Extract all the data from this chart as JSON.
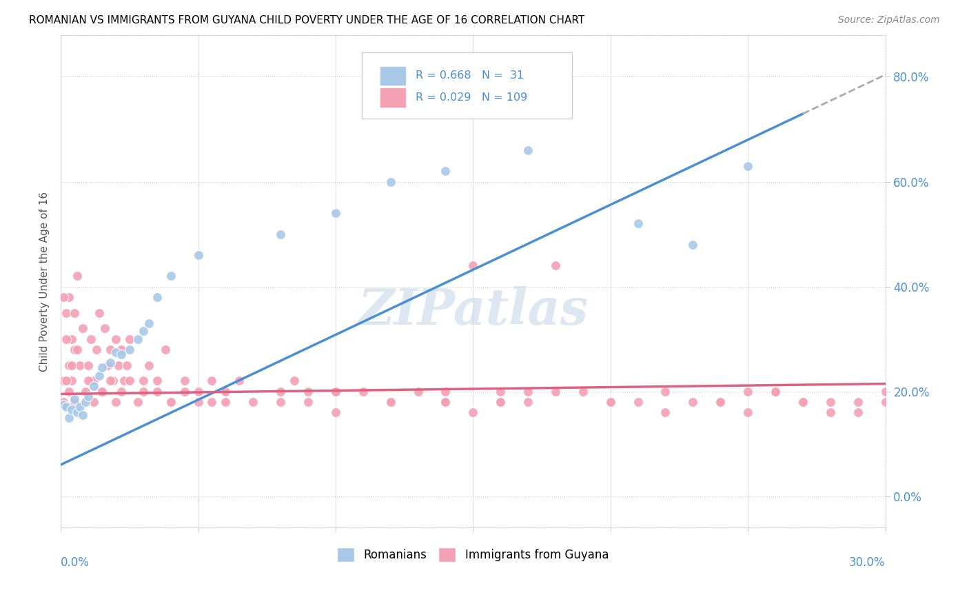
{
  "title": "ROMANIAN VS IMMIGRANTS FROM GUYANA CHILD POVERTY UNDER THE AGE OF 16 CORRELATION CHART",
  "source": "Source: ZipAtlas.com",
  "ylabel": "Child Poverty Under the Age of 16",
  "ytick_labels": [
    "0.0%",
    "20.0%",
    "40.0%",
    "60.0%",
    "80.0%"
  ],
  "ytick_vals": [
    0.0,
    0.2,
    0.4,
    0.6,
    0.8
  ],
  "xlim": [
    0.0,
    0.3
  ],
  "ylim": [
    -0.06,
    0.88
  ],
  "color_romanian": "#a8c8e8",
  "color_guyana": "#f4a0b5",
  "color_line_romanian": "#4a8fd4",
  "color_line_guyana": "#e06080",
  "watermark": "ZIPatlas",
  "romanian_x": [
    0.001,
    0.002,
    0.003,
    0.004,
    0.005,
    0.006,
    0.007,
    0.008,
    0.009,
    0.01,
    0.012,
    0.014,
    0.015,
    0.018,
    0.02,
    0.022,
    0.025,
    0.028,
    0.03,
    0.032,
    0.035,
    0.04,
    0.05,
    0.08,
    0.1,
    0.12,
    0.14,
    0.17,
    0.21,
    0.23,
    0.25
  ],
  "romanian_y": [
    0.175,
    0.17,
    0.15,
    0.165,
    0.185,
    0.16,
    0.17,
    0.155,
    0.18,
    0.19,
    0.21,
    0.23,
    0.245,
    0.255,
    0.275,
    0.27,
    0.28,
    0.3,
    0.315,
    0.33,
    0.38,
    0.42,
    0.46,
    0.5,
    0.54,
    0.6,
    0.62,
    0.66,
    0.52,
    0.48,
    0.63
  ],
  "guyana_x": [
    0.001,
    0.002,
    0.003,
    0.004,
    0.005,
    0.006,
    0.007,
    0.008,
    0.009,
    0.001,
    0.002,
    0.003,
    0.004,
    0.005,
    0.006,
    0.01,
    0.011,
    0.012,
    0.013,
    0.014,
    0.015,
    0.016,
    0.017,
    0.018,
    0.019,
    0.02,
    0.021,
    0.022,
    0.023,
    0.024,
    0.025,
    0.001,
    0.002,
    0.003,
    0.004,
    0.005,
    0.03,
    0.032,
    0.035,
    0.038,
    0.04,
    0.045,
    0.05,
    0.055,
    0.06,
    0.065,
    0.07,
    0.08,
    0.085,
    0.09,
    0.1,
    0.01,
    0.012,
    0.015,
    0.018,
    0.02,
    0.022,
    0.025,
    0.028,
    0.03,
    0.035,
    0.04,
    0.045,
    0.05,
    0.055,
    0.06,
    0.12,
    0.14,
    0.16,
    0.18,
    0.2,
    0.22,
    0.24,
    0.26,
    0.28,
    0.3,
    0.15,
    0.17,
    0.19,
    0.21,
    0.23,
    0.25,
    0.27,
    0.29,
    0.1,
    0.12,
    0.14,
    0.16,
    0.18,
    0.08,
    0.09,
    0.1,
    0.11,
    0.12,
    0.13,
    0.14,
    0.15,
    0.16,
    0.17,
    0.2,
    0.22,
    0.24,
    0.26,
    0.28,
    0.3,
    0.25,
    0.27,
    0.29
  ],
  "guyana_y": [
    0.22,
    0.35,
    0.38,
    0.3,
    0.28,
    0.42,
    0.25,
    0.32,
    0.2,
    0.38,
    0.3,
    0.25,
    0.22,
    0.35,
    0.28,
    0.25,
    0.3,
    0.22,
    0.28,
    0.35,
    0.2,
    0.32,
    0.25,
    0.28,
    0.22,
    0.3,
    0.25,
    0.28,
    0.22,
    0.25,
    0.3,
    0.18,
    0.22,
    0.2,
    0.25,
    0.18,
    0.22,
    0.25,
    0.2,
    0.28,
    0.18,
    0.22,
    0.2,
    0.18,
    0.2,
    0.22,
    0.18,
    0.2,
    0.22,
    0.18,
    0.2,
    0.22,
    0.18,
    0.2,
    0.22,
    0.18,
    0.2,
    0.22,
    0.18,
    0.2,
    0.22,
    0.18,
    0.2,
    0.18,
    0.22,
    0.18,
    0.18,
    0.2,
    0.18,
    0.2,
    0.18,
    0.2,
    0.18,
    0.2,
    0.18,
    0.2,
    0.44,
    0.18,
    0.2,
    0.18,
    0.18,
    0.2,
    0.18,
    0.18,
    0.2,
    0.18,
    0.18,
    0.2,
    0.44,
    0.18,
    0.2,
    0.16,
    0.2,
    0.18,
    0.2,
    0.18,
    0.16,
    0.18,
    0.2,
    0.18,
    0.16,
    0.18,
    0.2,
    0.16,
    0.18,
    0.16,
    0.18,
    0.16
  ]
}
